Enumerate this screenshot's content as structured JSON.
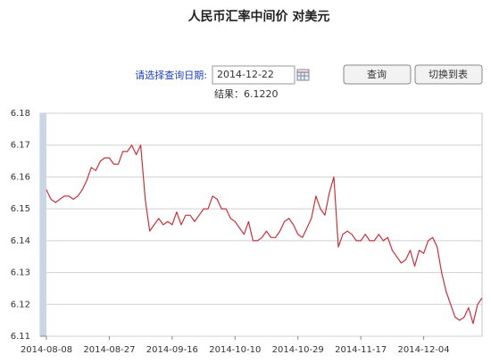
{
  "title": "人民币汇率中间价  对美元",
  "form": {
    "label": "请选择查询日期:",
    "date": "2014-12-22",
    "query_button": "查询",
    "switch_button": "切换到表",
    "result": "结果：6.1220"
  },
  "chart_data": {
    "type": "line",
    "color": "#c8323c",
    "grid": true,
    "ylim": [
      6.11,
      6.18
    ],
    "yticks": [
      6.11,
      6.12,
      6.13,
      6.14,
      6.15,
      6.16,
      6.17,
      6.18
    ],
    "categories": [
      "2014-08-08",
      null,
      null,
      null,
      null,
      null,
      null,
      null,
      null,
      null,
      null,
      null,
      null,
      null,
      "2014-08-27",
      null,
      null,
      null,
      null,
      null,
      null,
      null,
      null,
      null,
      null,
      null,
      null,
      null,
      "2014-09-16",
      null,
      null,
      null,
      null,
      null,
      null,
      null,
      null,
      null,
      null,
      null,
      null,
      null,
      "2014-10-10",
      null,
      null,
      null,
      null,
      null,
      null,
      null,
      null,
      null,
      null,
      null,
      null,
      null,
      "2014-10-29",
      null,
      null,
      null,
      null,
      null,
      null,
      null,
      null,
      null,
      null,
      null,
      null,
      null,
      "2014-11-17",
      null,
      null,
      null,
      null,
      null,
      null,
      null,
      null,
      null,
      null,
      null,
      null,
      null,
      "2014-12-04",
      null,
      null,
      null,
      null,
      null,
      null,
      null,
      null,
      null,
      null,
      null,
      null,
      null
    ],
    "values": [
      6.156,
      6.153,
      6.152,
      6.153,
      6.154,
      6.154,
      6.153,
      6.154,
      6.156,
      6.159,
      6.163,
      6.162,
      6.165,
      6.166,
      6.166,
      6.164,
      6.164,
      6.168,
      6.168,
      6.17,
      6.167,
      6.17,
      6.153,
      6.143,
      6.145,
      6.147,
      6.145,
      6.146,
      6.145,
      6.149,
      6.145,
      6.148,
      6.148,
      6.146,
      6.148,
      6.15,
      6.15,
      6.154,
      6.153,
      6.15,
      6.15,
      6.147,
      6.146,
      6.144,
      6.142,
      6.146,
      6.14,
      6.14,
      6.141,
      6.143,
      6.141,
      6.141,
      6.143,
      6.146,
      6.147,
      6.145,
      6.142,
      6.141,
      6.144,
      6.147,
      6.154,
      6.15,
      6.148,
      6.155,
      6.16,
      6.138,
      6.142,
      6.143,
      6.142,
      6.14,
      6.14,
      6.142,
      6.14,
      6.14,
      6.142,
      6.14,
      6.141,
      6.137,
      6.135,
      6.133,
      6.134,
      6.137,
      6.132,
      6.137,
      6.136,
      6.14,
      6.141,
      6.138,
      6.13,
      6.124,
      6.12,
      6.116,
      6.115,
      6.116,
      6.119,
      6.114,
      6.12,
      6.122
    ]
  }
}
